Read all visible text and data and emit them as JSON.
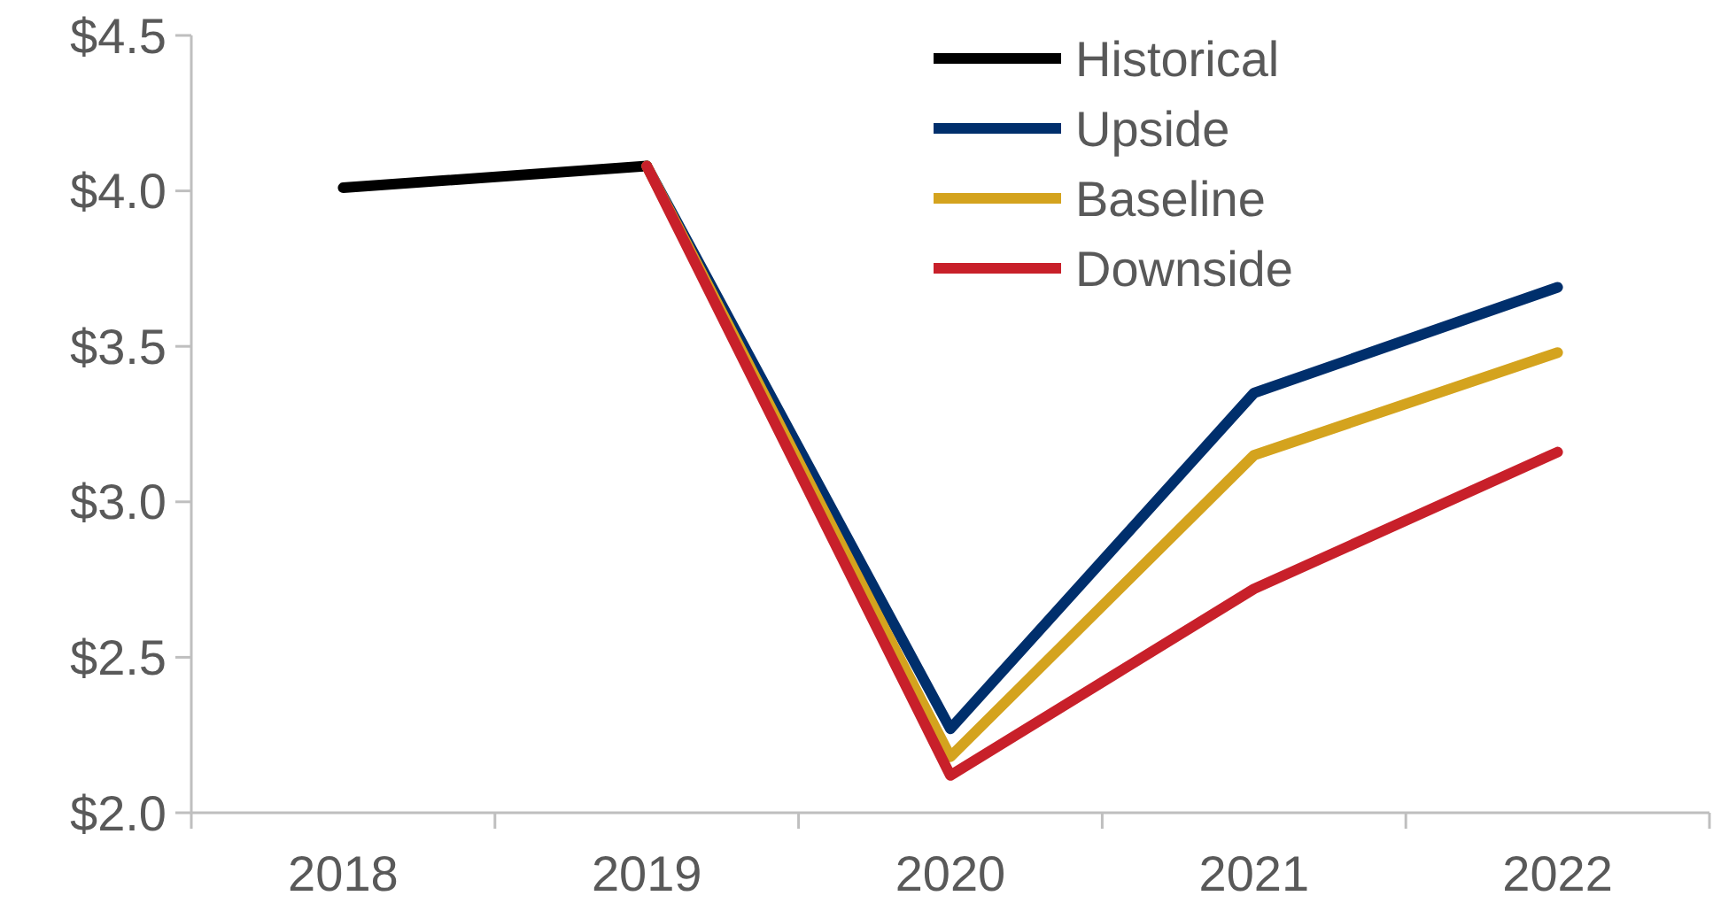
{
  "chart_data": {
    "type": "line",
    "categories": [
      "2018",
      "2019",
      "2020",
      "2021",
      "2022"
    ],
    "series": [
      {
        "name": "Historical",
        "color": "#000000",
        "values": [
          4.01,
          4.08,
          null,
          null,
          null
        ]
      },
      {
        "name": "Upside",
        "color": "#002f6c",
        "values": [
          null,
          4.08,
          2.27,
          3.35,
          3.69
        ]
      },
      {
        "name": "Baseline",
        "color": "#d4a31e",
        "values": [
          null,
          4.08,
          2.18,
          3.15,
          3.48
        ]
      },
      {
        "name": "Downside",
        "color": "#c8202a",
        "values": [
          null,
          4.08,
          2.12,
          2.72,
          3.16
        ]
      }
    ],
    "ylim": [
      2.0,
      4.5
    ],
    "yticks": [
      {
        "value": 2.0,
        "label": "$2.0"
      },
      {
        "value": 2.5,
        "label": "$2.5"
      },
      {
        "value": 3.0,
        "label": "$3.0"
      },
      {
        "value": 3.5,
        "label": "$3.5"
      },
      {
        "value": 4.0,
        "label": "$4.0"
      },
      {
        "value": 4.5,
        "label": "$4.5"
      }
    ],
    "grid": false,
    "legend": "top",
    "marker": "none",
    "line_style": "solid"
  }
}
